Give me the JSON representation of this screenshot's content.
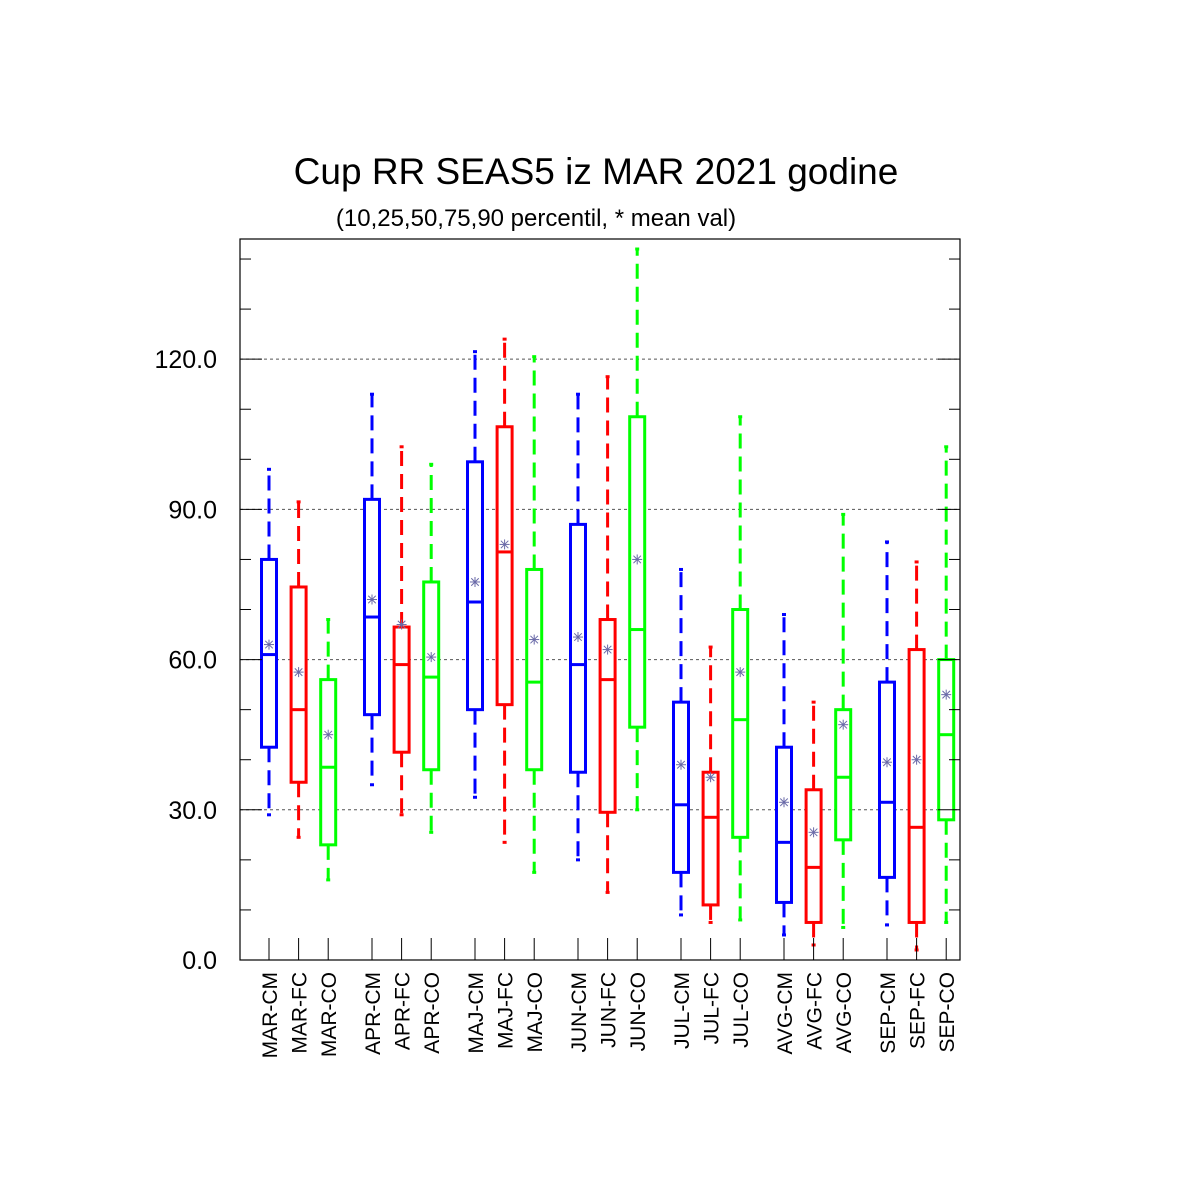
{
  "chart_data": {
    "type": "boxplot",
    "title": "Cup RR SEAS5 iz MAR 2021 godine",
    "subtitle": "(10,25,50,75,90 percentil, * mean val)",
    "ylim": [
      0,
      144
    ],
    "yticks": [
      0,
      30,
      60,
      90,
      120
    ],
    "ytick_labels": [
      "0.0",
      "30.0",
      "60.0",
      "90.0",
      "120.0"
    ],
    "grid": "horizontal dashed at major ticks",
    "series_colors": {
      "CM": "#0000ff",
      "FC": "#ff0000",
      "CO": "#00ff00"
    },
    "groups": [
      {
        "boxes": [
          {
            "label": "MAR-CM",
            "type": "CM",
            "p10": 29,
            "p25": 42.5,
            "p50": 61,
            "p75": 80,
            "p90": 98,
            "mean": 63
          },
          {
            "label": "MAR-FC",
            "type": "FC",
            "p10": 24.5,
            "p25": 35.5,
            "p50": 50,
            "p75": 74.5,
            "p90": 91.5,
            "mean": 57.5
          },
          {
            "label": "MAR-CO",
            "type": "CO",
            "p10": 16,
            "p25": 23,
            "p50": 38.5,
            "p75": 56,
            "p90": 68,
            "mean": 45
          }
        ]
      },
      {
        "boxes": [
          {
            "label": "APR-CM",
            "type": "CM",
            "p10": 35,
            "p25": 49,
            "p50": 68.5,
            "p75": 92,
            "p90": 113,
            "mean": 72
          },
          {
            "label": "APR-FC",
            "type": "FC",
            "p10": 29,
            "p25": 41.5,
            "p50": 59,
            "p75": 66.5,
            "p90": 102.5,
            "mean": 67
          },
          {
            "label": "APR-CO",
            "type": "CO",
            "p10": 25.5,
            "p25": 38,
            "p50": 56.5,
            "p75": 75.5,
            "p90": 99,
            "mean": 60.5
          }
        ]
      },
      {
        "boxes": [
          {
            "label": "MAJ-CM",
            "type": "CM",
            "p10": 32.5,
            "p25": 50,
            "p50": 71.5,
            "p75": 99.5,
            "p90": 121.5,
            "mean": 75.5
          },
          {
            "label": "MAJ-FC",
            "type": "FC",
            "p10": 23.5,
            "p25": 51,
            "p50": 81.5,
            "p75": 106.5,
            "p90": 124,
            "mean": 83
          },
          {
            "label": "MAJ-CO",
            "type": "CO",
            "p10": 17.5,
            "p25": 38,
            "p50": 55.5,
            "p75": 78,
            "p90": 120.5,
            "mean": 64
          }
        ]
      },
      {
        "boxes": [
          {
            "label": "JUN-CM",
            "type": "CM",
            "p10": 20,
            "p25": 37.5,
            "p50": 59,
            "p75": 87,
            "p90": 113,
            "mean": 64.5
          },
          {
            "label": "JUN-FC",
            "type": "FC",
            "p10": 13.5,
            "p25": 29.5,
            "p50": 56,
            "p75": 68,
            "p90": 116.5,
            "mean": 62
          },
          {
            "label": "JUN-CO",
            "type": "CO",
            "p10": 30,
            "p25": 46.5,
            "p50": 66,
            "p75": 108.5,
            "p90": 142,
            "mean": 80
          }
        ]
      },
      {
        "boxes": [
          {
            "label": "JUL-CM",
            "type": "CM",
            "p10": 9,
            "p25": 17.5,
            "p50": 31,
            "p75": 51.5,
            "p90": 78,
            "mean": 39
          },
          {
            "label": "JUL-FC",
            "type": "FC",
            "p10": 7.5,
            "p25": 11,
            "p50": 28.5,
            "p75": 37.5,
            "p90": 62.5,
            "mean": 36.5
          },
          {
            "label": "JUL-CO",
            "type": "CO",
            "p10": 8,
            "p25": 24.5,
            "p50": 48,
            "p75": 70,
            "p90": 108.5,
            "mean": 57.5
          }
        ]
      },
      {
        "boxes": [
          {
            "label": "AVG-CM",
            "type": "CM",
            "p10": 5,
            "p25": 11.5,
            "p50": 23.5,
            "p75": 42.5,
            "p90": 69,
            "mean": 31.5
          },
          {
            "label": "AVG-FC",
            "type": "FC",
            "p10": 3,
            "p25": 7.5,
            "p50": 18.5,
            "p75": 34,
            "p90": 51.5,
            "mean": 25.5
          },
          {
            "label": "AVG-CO",
            "type": "CO",
            "p10": 6.5,
            "p25": 24,
            "p50": 36.5,
            "p75": 50,
            "p90": 89,
            "mean": 47
          }
        ]
      },
      {
        "boxes": [
          {
            "label": "SEP-CM",
            "type": "CM",
            "p10": 7,
            "p25": 16.5,
            "p50": 31.5,
            "p75": 55.5,
            "p90": 83.5,
            "mean": 39.5
          },
          {
            "label": "SEP-FC",
            "type": "FC",
            "p10": 2,
            "p25": 7.5,
            "p50": 26.5,
            "p75": 62,
            "p90": 79.5,
            "mean": 40
          },
          {
            "label": "SEP-CO",
            "type": "CO",
            "p10": 7.5,
            "p25": 28,
            "p50": 45,
            "p75": 60,
            "p90": 102.5,
            "mean": 53
          }
        ]
      }
    ]
  }
}
